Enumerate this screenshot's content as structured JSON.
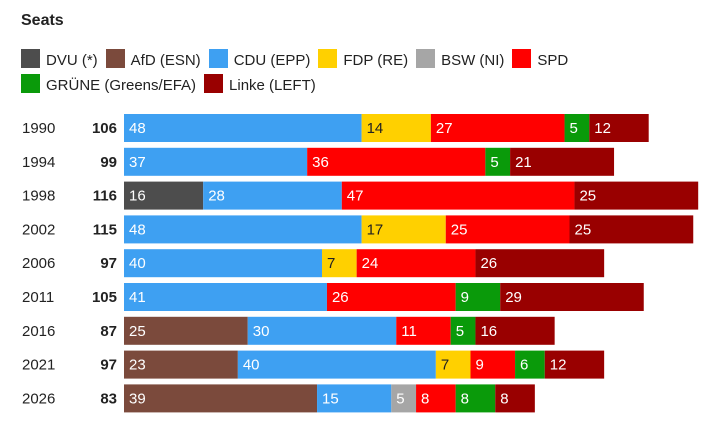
{
  "chart_data": {
    "type": "bar",
    "orientation": "horizontal",
    "stacked": true,
    "title": "Seats",
    "legend_position": "top",
    "categories": [
      "1990",
      "1994",
      "1998",
      "2002",
      "2006",
      "2011",
      "2016",
      "2021",
      "2026"
    ],
    "totals": [
      106,
      99,
      116,
      115,
      97,
      105,
      87,
      97,
      83
    ],
    "series": [
      {
        "name": "DVU (*)",
        "color": "#4d4d4d",
        "text_color": "#ffffff",
        "values": [
          0,
          0,
          16,
          0,
          0,
          0,
          0,
          0,
          0
        ]
      },
      {
        "name": "AfD (ESN)",
        "color": "#7b4a3c",
        "text_color": "#ffffff",
        "values": [
          0,
          0,
          0,
          0,
          0,
          0,
          25,
          23,
          39
        ]
      },
      {
        "name": "CDU (EPP)",
        "color": "#3ea0f2",
        "text_color": "#ffffff",
        "values": [
          48,
          37,
          28,
          48,
          40,
          41,
          30,
          40,
          15
        ]
      },
      {
        "name": "FDP (RE)",
        "color": "#ffd000",
        "text_color": "#222222",
        "values": [
          14,
          0,
          0,
          17,
          7,
          0,
          0,
          7,
          0
        ]
      },
      {
        "name": "BSW (NI)",
        "color": "#a6a6a6",
        "text_color": "#ffffff",
        "values": [
          0,
          0,
          0,
          0,
          0,
          0,
          0,
          0,
          5
        ]
      },
      {
        "name": "SPD",
        "color": "#ff0000",
        "text_color": "#ffffff",
        "values": [
          27,
          36,
          47,
          25,
          24,
          26,
          11,
          9,
          8
        ]
      },
      {
        "name": "GRÜNE (Greens/EFA)",
        "color": "#0a9a0a",
        "text_color": "#ffffff",
        "values": [
          5,
          5,
          0,
          0,
          0,
          9,
          5,
          6,
          8
        ]
      },
      {
        "name": "Linke (LEFT)",
        "color": "#990000",
        "text_color": "#ffffff",
        "values": [
          12,
          21,
          25,
          25,
          26,
          29,
          16,
          12,
          8
        ]
      }
    ]
  }
}
